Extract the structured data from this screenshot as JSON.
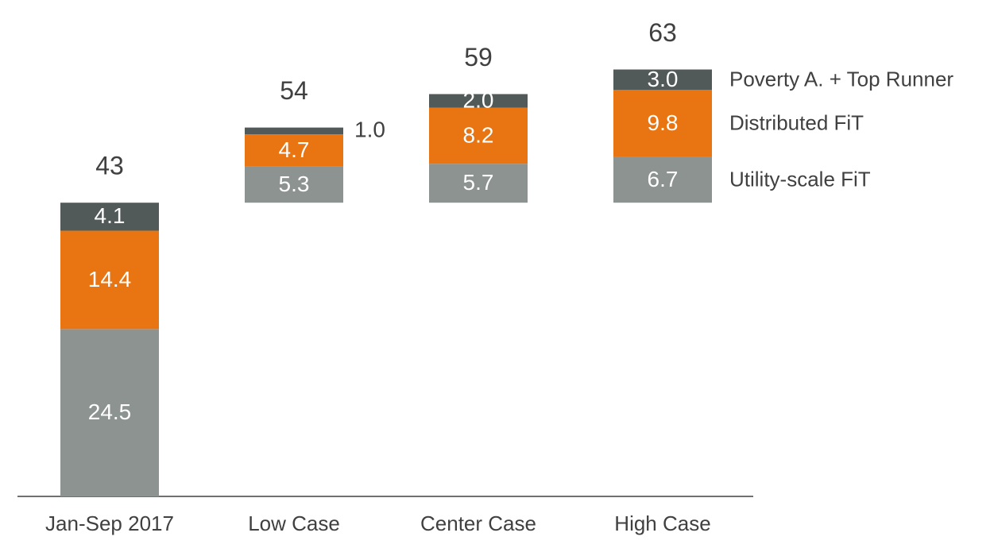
{
  "chart_data": {
    "type": "waterfall-stack",
    "categories": [
      "Jan-Sep 2017",
      "Low Case",
      "Center Case",
      "High Case"
    ],
    "series": [
      {
        "name": "Utility-scale FiT",
        "color": "#8c9390",
        "values": [
          24.5,
          5.3,
          5.7,
          6.7
        ],
        "value_labels": [
          "24.5",
          "5.3",
          "5.7",
          "6.7"
        ]
      },
      {
        "name": "Distributed FiT",
        "color": "#e87511",
        "values": [
          14.4,
          4.7,
          8.2,
          9.8
        ],
        "value_labels": [
          "14.4",
          "4.7",
          "8.2",
          "9.8"
        ]
      },
      {
        "name": "Poverty A. + Top Runner",
        "color": "#515a58",
        "values": [
          4.1,
          1.0,
          2.0,
          3.0
        ],
        "value_labels": [
          "4.1",
          "1.0",
          "2.0",
          "3.0"
        ]
      }
    ],
    "totals": [
      43,
      54,
      59,
      63
    ]
  }
}
